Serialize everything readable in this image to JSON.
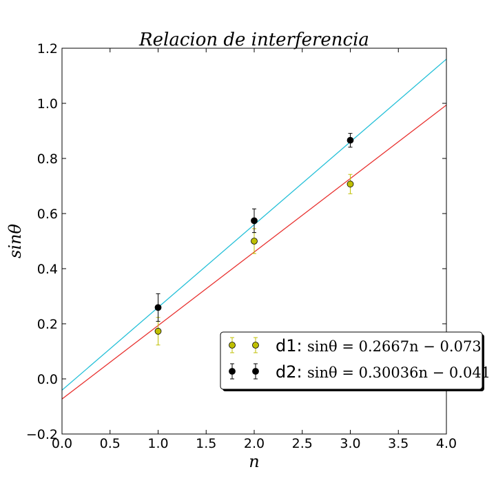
{
  "chart_data": {
    "type": "scatter",
    "title": "Relacion de interferencia",
    "xlabel": "n",
    "ylabel": "sinθ",
    "xlim": [
      0.0,
      4.0
    ],
    "ylim": [
      -0.2,
      1.2
    ],
    "xticks": [
      "0.0",
      "0.5",
      "1.0",
      "1.5",
      "2.0",
      "2.5",
      "3.0",
      "3.5",
      "4.0"
    ],
    "yticks": [
      "−0.2",
      "0.0",
      "0.2",
      "0.4",
      "0.6",
      "0.8",
      "1.0",
      "1.2"
    ],
    "grid": false,
    "legend_position": "lower-right",
    "series": [
      {
        "name": "d1",
        "equation": "sinθ = 0.2667n − 0.073",
        "marker_color": "#bfbf00",
        "line_color": "#e8312f",
        "x": [
          1.0,
          2.0,
          3.0
        ],
        "y": [
          0.173,
          0.5,
          0.707
        ],
        "yerr": [
          0.05,
          0.045,
          0.035
        ],
        "fit": {
          "slope": 0.2667,
          "intercept": -0.073
        }
      },
      {
        "name": "d2",
        "equation": "sinθ = 0.30036n − 0.041",
        "marker_color": "#000000",
        "line_color": "#25c0d8",
        "x": [
          1.0,
          2.0,
          3.0
        ],
        "y": [
          0.259,
          0.574,
          0.866
        ],
        "yerr": [
          0.05,
          0.043,
          0.025
        ],
        "fit": {
          "slope": 0.30036,
          "intercept": -0.041
        }
      }
    ]
  }
}
